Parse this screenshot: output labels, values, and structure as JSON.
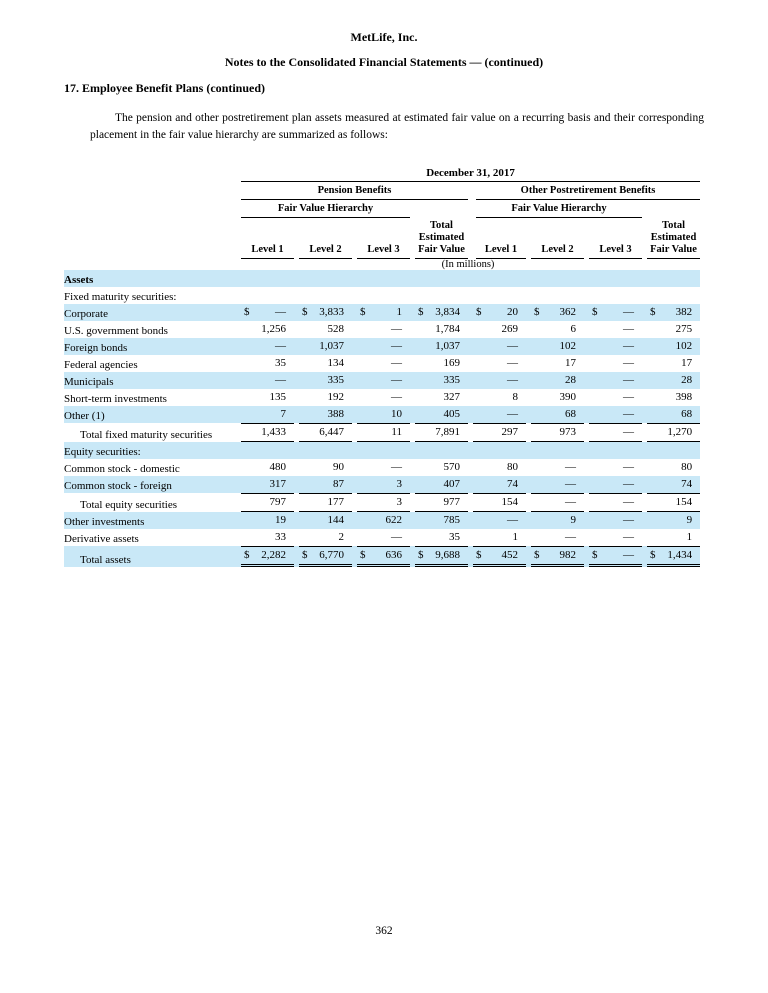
{
  "page": {
    "company": "MetLife, Inc.",
    "subtitle": "Notes to the Consolidated Financial Statements — (continued)",
    "section_heading": "17. Employee Benefit Plans (continued)",
    "intro": "The pension and other postretirement plan assets measured at estimated fair value on a recurring basis and their corresponding placement in the fair value hierarchy are summarized as follows:",
    "page_number": "362"
  },
  "table": {
    "date_header": "December 31, 2017",
    "groups": [
      "Pension Benefits",
      "Other Postretirement Benefits"
    ],
    "subgroup": "Fair Value Hierarchy",
    "columns": [
      "Level 1",
      "Level 2",
      "Level 3",
      "Total Estimated Fair Value",
      "Level 1",
      "Level 2",
      "Level 3",
      "Total Estimated Fair Value"
    ],
    "units_note": "(In millions)",
    "highlight_color": "#c9e8f7",
    "rows": [
      {
        "label": "Assets",
        "bold": true,
        "shaded": true,
        "values": []
      },
      {
        "label": "Fixed maturity securities:",
        "shaded": false,
        "values": []
      },
      {
        "label": "Corporate",
        "shaded": true,
        "dollar": true,
        "values": [
          "—",
          "3,833",
          "1",
          "3,834",
          "20",
          "362",
          "—",
          "382"
        ]
      },
      {
        "label": "U.S. government bonds",
        "shaded": false,
        "values": [
          "1,256",
          "528",
          "—",
          "1,784",
          "269",
          "6",
          "—",
          "275"
        ]
      },
      {
        "label": "Foreign bonds",
        "shaded": true,
        "values": [
          "—",
          "1,037",
          "—",
          "1,037",
          "—",
          "102",
          "—",
          "102"
        ]
      },
      {
        "label": "Federal agencies",
        "shaded": false,
        "values": [
          "35",
          "134",
          "—",
          "169",
          "—",
          "17",
          "—",
          "17"
        ]
      },
      {
        "label": "Municipals",
        "shaded": true,
        "values": [
          "—",
          "335",
          "—",
          "335",
          "—",
          "28",
          "—",
          "28"
        ]
      },
      {
        "label": "Short-term investments",
        "shaded": false,
        "values": [
          "135",
          "192",
          "—",
          "327",
          "8",
          "390",
          "—",
          "398"
        ]
      },
      {
        "label": "Other (1)",
        "shaded": true,
        "values": [
          "7",
          "388",
          "10",
          "405",
          "—",
          "68",
          "—",
          "68"
        ]
      },
      {
        "label": "Total fixed maturity securities",
        "shaded": false,
        "indent": true,
        "rule_top": true,
        "rule_bottom": true,
        "values": [
          "1,433",
          "6,447",
          "11",
          "7,891",
          "297",
          "973",
          "—",
          "1,270"
        ]
      },
      {
        "label": "Equity securities:",
        "shaded": true,
        "values": []
      },
      {
        "label": "Common stock - domestic",
        "shaded": false,
        "values": [
          "480",
          "90",
          "—",
          "570",
          "80",
          "—",
          "—",
          "80"
        ]
      },
      {
        "label": "Common stock - foreign",
        "shaded": true,
        "values": [
          "317",
          "87",
          "3",
          "407",
          "74",
          "—",
          "—",
          "74"
        ]
      },
      {
        "label": "Total equity securities",
        "shaded": false,
        "indent": true,
        "rule_top": true,
        "rule_bottom": true,
        "values": [
          "797",
          "177",
          "3",
          "977",
          "154",
          "—",
          "—",
          "154"
        ]
      },
      {
        "label": "Other investments",
        "shaded": true,
        "values": [
          "19",
          "144",
          "622",
          "785",
          "—",
          "9",
          "—",
          "9"
        ]
      },
      {
        "label": "Derivative assets",
        "shaded": false,
        "values": [
          "33",
          "2",
          "—",
          "35",
          "1",
          "—",
          "—",
          "1"
        ]
      },
      {
        "label": "Total assets",
        "shaded": true,
        "indent": true,
        "dollar": true,
        "rule_top": true,
        "double_bottom": true,
        "values": [
          "2,282",
          "6,770",
          "636",
          "9,688",
          "452",
          "982",
          "—",
          "1,434"
        ]
      }
    ]
  }
}
